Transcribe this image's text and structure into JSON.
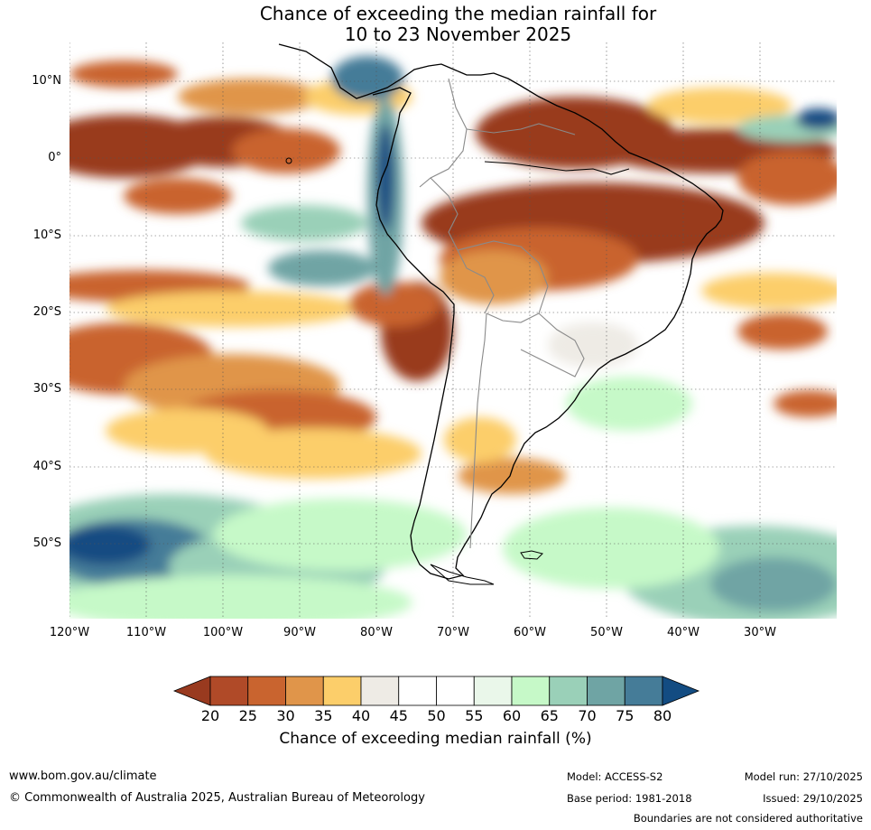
{
  "title": {
    "line1": "Chance of exceeding the median rainfall for",
    "line2": "10 to 23 November 2025"
  },
  "lat_labels": [
    "10°N",
    "0°",
    "10°S",
    "20°S",
    "30°S",
    "40°S",
    "50°S"
  ],
  "lon_labels": [
    "120°W",
    "110°W",
    "100°W",
    "90°W",
    "80°W",
    "70°W",
    "60°W",
    "50°W",
    "40°W",
    "30°W"
  ],
  "colorbar": {
    "ticks": [
      "20",
      "25",
      "30",
      "35",
      "40",
      "45",
      "50",
      "55",
      "60",
      "65",
      "70",
      "75",
      "80"
    ],
    "colors": [
      "#993a1f",
      "#b04a28",
      "#c9642f",
      "#e0954a",
      "#fcce6a",
      "#eeebe5",
      "#ffffff",
      "#ffffff",
      "#eaf7ea",
      "#c6f9c8",
      "#9ad0b8",
      "#6fa4a4",
      "#457c98",
      "#134c82"
    ],
    "label": "Chance of exceeding median rainfall (%)"
  },
  "footer": {
    "website": "www.bom.gov.au/climate",
    "copyright": "© Commonwealth of Australia 2025, Australian Bureau of Meteorology",
    "model": "Model: ACCESS-S2",
    "base_period": "Base period: 1981-2018",
    "model_run": "Model run: 27/10/2025",
    "issued": "Issued: 29/10/2025",
    "disclaimer": "Boundaries are not considered authoritative"
  }
}
